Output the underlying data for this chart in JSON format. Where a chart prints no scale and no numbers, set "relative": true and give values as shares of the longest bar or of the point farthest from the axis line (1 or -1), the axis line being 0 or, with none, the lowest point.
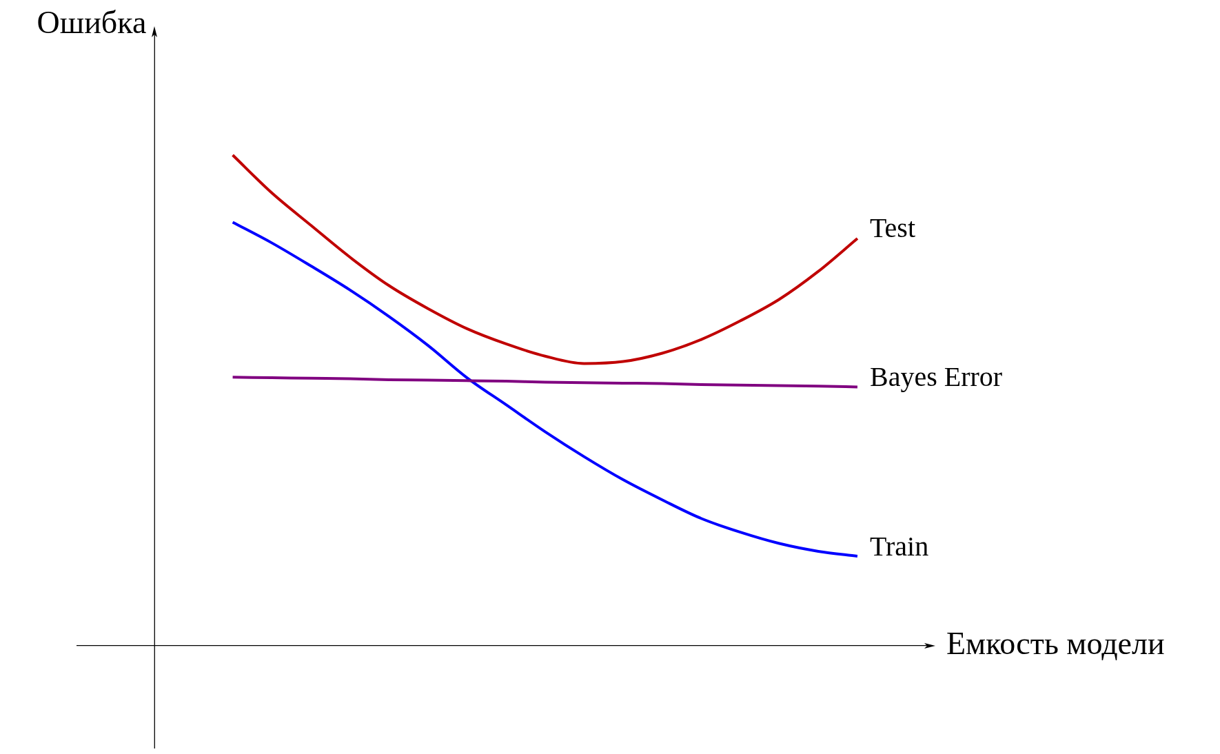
{
  "chart_data": {
    "type": "line",
    "xlabel": "Емкость модели",
    "ylabel": "Ошибка",
    "relative": true,
    "legend": false,
    "marker": "none",
    "line_style": "solid",
    "categories": [
      null,
      null,
      null,
      null,
      null,
      null,
      null,
      null,
      null,
      null,
      null,
      null,
      null,
      null,
      null,
      null,
      null
    ],
    "series": [
      {
        "name": "Test",
        "color": "#c00000",
        "values": [
          1,
          0.923,
          0.857,
          0.792,
          0.734,
          0.687,
          0.646,
          0.615,
          0.59,
          0.575,
          0.579,
          0.596,
          0.624,
          0.662,
          0.706,
          0.763,
          0.83
        ]
      },
      {
        "name": "Bayes Error",
        "color": "#800080",
        "values": [
          0.547,
          0.546,
          0.545,
          0.544,
          0.542,
          0.541,
          0.54,
          0.539,
          0.537,
          0.536,
          0.535,
          0.534,
          0.532,
          0.531,
          0.53,
          0.529,
          0.527
        ]
      },
      {
        "name": "Train",
        "color": "#0000ff",
        "values": [
          0.863,
          0.821,
          0.774,
          0.725,
          0.671,
          0.612,
          0.546,
          0.491,
          0.436,
          0.385,
          0.338,
          0.297,
          0.259,
          0.231,
          0.208,
          0.192,
          0.182
        ]
      }
    ]
  }
}
